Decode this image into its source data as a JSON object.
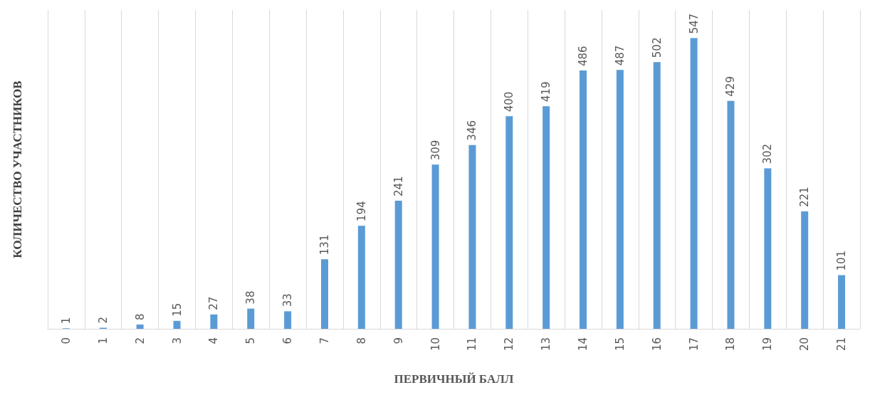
{
  "chart_data": {
    "type": "bar",
    "xlabel": "ПЕРВИЧНЫЙ БАЛЛ",
    "ylabel": "КОЛИЧЕСТВО УЧАСТНИКОВ",
    "categories": [
      "0",
      "1",
      "2",
      "3",
      "4",
      "5",
      "6",
      "7",
      "8",
      "9",
      "10",
      "11",
      "12",
      "13",
      "14",
      "15",
      "16",
      "17",
      "18",
      "19",
      "20",
      "21"
    ],
    "values": [
      1,
      2,
      8,
      15,
      27,
      38,
      33,
      131,
      194,
      241,
      309,
      346,
      400,
      419,
      486,
      487,
      502,
      547,
      429,
      302,
      221,
      101
    ],
    "color": "#5b9bd5",
    "data_labels": true,
    "grid": "x"
  }
}
